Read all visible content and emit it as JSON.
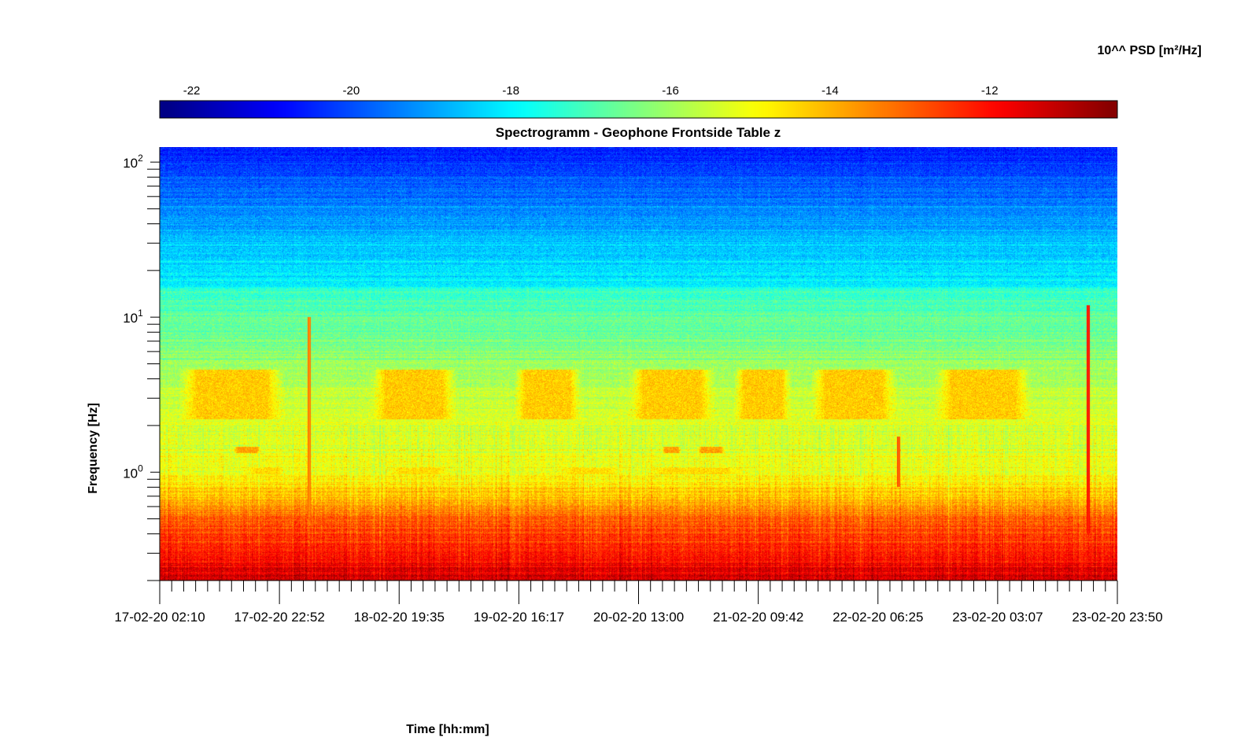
{
  "chart_data": {
    "type": "heatmap",
    "title": "Spectrogramm - Geophone Frontside Table z",
    "xlabel": "Time [hh:mm]",
    "ylabel": "Frequency [Hz]",
    "x_ticks": [
      "17-02-20 02:10",
      "17-02-20 22:52",
      "18-02-20 19:35",
      "19-02-20 16:17",
      "20-02-20 13:00",
      "21-02-20 09:42",
      "22-02-20 06:25",
      "23-02-20 03:07",
      "23-02-20 23:50"
    ],
    "y_scale": "log",
    "y_ticks": [
      {
        "base": "10",
        "exp": "2",
        "value": 100
      },
      {
        "base": "10",
        "exp": "1",
        "value": 10
      },
      {
        "base": "10",
        "exp": "0",
        "value": 1
      }
    ],
    "ylim": [
      0.2,
      125
    ],
    "colorbar": {
      "label": "10^^ PSD [m²/Hz]",
      "ticks": [
        "-22",
        "-20",
        "-18",
        "-16",
        "-14",
        "-12"
      ],
      "tick_values": [
        -22,
        -20,
        -18,
        -16,
        -14,
        -12
      ],
      "range": [
        -22.4,
        -10.4
      ],
      "colormap": "jet",
      "placement": "top"
    },
    "frequency_profile": [
      {
        "f": 0.2,
        "v": -11.2
      },
      {
        "f": 0.3,
        "v": -12.2
      },
      {
        "f": 0.5,
        "v": -13.0
      },
      {
        "f": 0.7,
        "v": -14.2
      },
      {
        "f": 1.0,
        "v": -15.0
      },
      {
        "f": 1.5,
        "v": -15.3
      },
      {
        "f": 3.0,
        "v": -15.5
      },
      {
        "f": 6.0,
        "v": -16.4
      },
      {
        "f": 15.0,
        "v": -17.2
      },
      {
        "f": 16.0,
        "v": -18.0
      },
      {
        "f": 30.0,
        "v": -18.6
      },
      {
        "f": 60.0,
        "v": -19.6
      },
      {
        "f": 125.0,
        "v": -20.6
      }
    ],
    "activity_bands": [
      {
        "f_low": 2.2,
        "f_high": 4.6,
        "v": -14.3,
        "t_ranges": [
          [
            0.02,
            0.13
          ],
          [
            0.22,
            0.31
          ],
          [
            0.37,
            0.44
          ],
          [
            0.49,
            0.58
          ],
          [
            0.6,
            0.66
          ],
          [
            0.68,
            0.77
          ],
          [
            0.81,
            0.91
          ]
        ]
      },
      {
        "f_low": 1.33,
        "f_high": 1.45,
        "v": -13.8,
        "t_ranges": [
          [
            0.076,
            0.106
          ],
          [
            0.524,
            0.545
          ],
          [
            0.561,
            0.591
          ]
        ]
      },
      {
        "f_low": 0.96,
        "f_high": 1.06,
        "v": -14.5,
        "t_ranges": [
          [
            0.09,
            0.13
          ],
          [
            0.24,
            0.3
          ],
          [
            0.42,
            0.48
          ],
          [
            0.51,
            0.61
          ]
        ]
      }
    ],
    "spikes": [
      {
        "t": 0.156,
        "f_low": 0.5,
        "f_high": 10,
        "v": -13.8
      },
      {
        "t": 0.97,
        "f_low": 0.4,
        "f_high": 12,
        "v": -12.5
      },
      {
        "t": 0.772,
        "f_low": 0.8,
        "f_high": 1.7,
        "v": -13.3
      }
    ],
    "colors": {
      "jet_stops": [
        "#00008f",
        "#0000ff",
        "#00ffff",
        "#ffff00",
        "#ff0000",
        "#800000"
      ]
    }
  }
}
